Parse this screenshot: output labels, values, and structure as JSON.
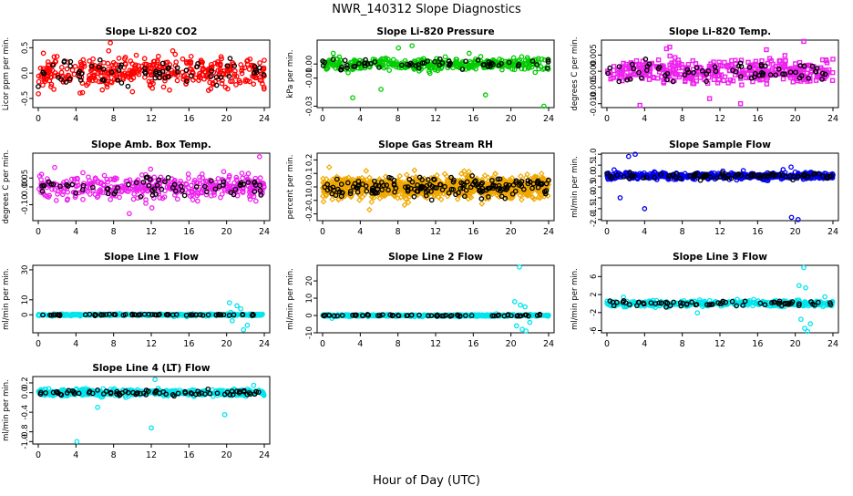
{
  "page": {
    "title": "NWR_140312  Slope Diagnostics",
    "xlabel": "Hour of Day (UTC)"
  },
  "chart_data": [
    {
      "type": "scatter",
      "title": "Slope Li-820 CO2",
      "ylabel": "Licor ppm per min.",
      "color": "#ff0000",
      "marker": "circle",
      "xlim": [
        0,
        24
      ],
      "xticks": [
        0,
        4,
        8,
        12,
        16,
        20,
        24
      ],
      "ylim": [
        -0.68,
        0.65
      ],
      "yticks": [
        -0.5,
        0,
        0.5
      ],
      "ytick_labels": [
        "-0.5",
        "0.0",
        "0.5"
      ],
      "spread": 0.28,
      "hi": 0.6,
      "lo": -0.62,
      "seed": 11,
      "n": 420,
      "spikes": []
    },
    {
      "type": "scatter",
      "title": "Slope Li-820 Pressure",
      "ylabel": "kPa per min.",
      "color": "#00cc00",
      "marker": "circle",
      "xlim": [
        0,
        24
      ],
      "xticks": [
        0,
        4,
        8,
        12,
        16,
        20,
        24
      ],
      "ylim": [
        -0.031,
        0.017
      ],
      "yticks": [
        -0.03,
        -0.01,
        0
      ],
      "ytick_labels": [
        "-0.03",
        "-0.01",
        "0.00"
      ],
      "spread": 0.004,
      "hi": 0.014,
      "lo": -0.03,
      "seed": 23,
      "n": 380,
      "spikes": [
        [
          9.5,
          0.013
        ],
        [
          6.2,
          -0.018
        ],
        [
          17.3,
          -0.022
        ],
        [
          23.5,
          -0.03
        ],
        [
          3.2,
          -0.024
        ]
      ]
    },
    {
      "type": "scatter",
      "title": "Slope Li-820 Temp.",
      "ylabel": "degrees C per min.",
      "color": "#ee22ee",
      "marker": "square",
      "xlim": [
        0,
        24
      ],
      "xticks": [
        0,
        4,
        8,
        12,
        16,
        20,
        24
      ],
      "ylim": [
        -0.0112,
        0.0096
      ],
      "yticks": [
        -0.01,
        -0.005,
        0,
        0.005
      ],
      "ytick_labels": [
        "-0.010",
        "-0.005",
        "0.000",
        "0.005"
      ],
      "spread": 0.0032,
      "hi": 0.0095,
      "lo": -0.011,
      "seed": 37,
      "n": 420,
      "spikes": [
        [
          20.9,
          0.0092
        ],
        [
          3.5,
          -0.0105
        ]
      ]
    },
    {
      "type": "scatter",
      "title": "Slope Amb. Box Temp.",
      "ylabel": "degrees C per min.",
      "color": "#ee22ee",
      "marker": "circle",
      "xlim": [
        0,
        24
      ],
      "xticks": [
        0,
        4,
        8,
        12,
        16,
        20,
        24
      ],
      "ylim": [
        -0.19,
        0.19
      ],
      "yticks": [
        -0.1,
        0,
        0.05
      ],
      "ytick_labels": [
        "-0.10",
        "0.00",
        "0.05"
      ],
      "spread": 0.06,
      "hi": 0.17,
      "lo": -0.15,
      "seed": 41,
      "n": 420,
      "spikes": [
        [
          23.5,
          0.17
        ]
      ]
    },
    {
      "type": "scatter",
      "title": "Slope Gas Stream RH",
      "ylabel": "percent per min.",
      "color": "#f0a800",
      "marker": "diamond",
      "xlim": [
        0,
        24
      ],
      "xticks": [
        0,
        4,
        8,
        12,
        16,
        20,
        24
      ],
      "ylim": [
        -0.25,
        0.25
      ],
      "yticks": [
        -0.2,
        -0.1,
        0,
        0.1,
        0.2
      ],
      "ytick_labels": [
        "-0.2",
        "-0.1",
        "0.0",
        "0.1",
        "0.2"
      ],
      "spread": 0.07,
      "hi": 0.22,
      "lo": -0.22,
      "seed": 53,
      "n": 1100,
      "spikes": []
    },
    {
      "type": "scatter",
      "title": "Slope Sample Flow",
      "ylabel": "ml/min per min.",
      "color": "#0000ee",
      "marker": "circle",
      "xlim": [
        0,
        24
      ],
      "xticks": [
        0,
        4,
        8,
        12,
        16,
        20,
        24
      ],
      "ylim": [
        -2.05,
        1.05
      ],
      "yticks": [
        -2,
        -1.5,
        -1,
        -0.5,
        0,
        0.5,
        1
      ],
      "ytick_labels": [
        "-2.0",
        "-1.5",
        "-1.0",
        "-0.5",
        "0.0",
        "0.5",
        "1.0"
      ],
      "spread": 0.14,
      "hi": 0.9,
      "lo": -1.9,
      "seed": 61,
      "n": 520,
      "spikes": [
        [
          2.3,
          0.9
        ],
        [
          3.0,
          1.0
        ],
        [
          1.4,
          -1.0
        ],
        [
          4.0,
          -1.5
        ],
        [
          19.6,
          -1.9
        ],
        [
          20.3,
          -2.0
        ]
      ]
    },
    {
      "type": "scatter",
      "title": "Slope Line 1 Flow",
      "ylabel": "ml/min per min.",
      "color": "#00e5ee",
      "marker": "circle",
      "xlim": [
        0,
        24
      ],
      "xticks": [
        0,
        4,
        8,
        12,
        16,
        20,
        24
      ],
      "ylim": [
        -12,
        33
      ],
      "yticks": [
        0,
        10,
        30
      ],
      "ytick_labels": [
        "0",
        "10",
        "30"
      ],
      "spread": 0.5,
      "hi": 33,
      "lo": -12,
      "seed": 71,
      "n": 420,
      "spikes": [
        [
          20.9,
          33
        ],
        [
          20.3,
          8
        ],
        [
          21.1,
          6
        ],
        [
          21.5,
          4
        ],
        [
          20.6,
          -4
        ],
        [
          22.2,
          -7
        ],
        [
          21.8,
          -10
        ]
      ]
    },
    {
      "type": "scatter",
      "title": "Slope Line 2 Flow",
      "ylabel": "ml/min per min.",
      "color": "#00e5ee",
      "marker": "circle",
      "xlim": [
        0,
        24
      ],
      "xticks": [
        0,
        4,
        8,
        12,
        16,
        20,
        24
      ],
      "ylim": [
        -10,
        29
      ],
      "yticks": [
        -10,
        0,
        10,
        20
      ],
      "ytick_labels": [
        "-10",
        "0",
        "10",
        "20"
      ],
      "spread": 0.5,
      "hi": 29,
      "lo": -10,
      "seed": 83,
      "n": 420,
      "spikes": [
        [
          20.9,
          28
        ],
        [
          20.4,
          8
        ],
        [
          21.0,
          6
        ],
        [
          21.5,
          5
        ],
        [
          20.6,
          -6
        ],
        [
          21.2,
          -8
        ],
        [
          21.6,
          -9
        ],
        [
          22.0,
          -4
        ]
      ]
    },
    {
      "type": "scatter",
      "title": "Slope Line 3 Flow",
      "ylabel": "ml/min per min.",
      "color": "#00e5ee",
      "marker": "circle",
      "xlim": [
        0,
        24
      ],
      "xticks": [
        0,
        4,
        8,
        12,
        16,
        20,
        24
      ],
      "ylim": [
        -6.5,
        8.5
      ],
      "yticks": [
        -6,
        -2,
        2,
        6
      ],
      "ytick_labels": [
        "-6",
        "-2",
        "2",
        "6"
      ],
      "spread": 0.6,
      "hi": 8.2,
      "lo": -6.4,
      "seed": 97,
      "n": 420,
      "spikes": [
        [
          20.9,
          8
        ],
        [
          20.4,
          4
        ],
        [
          21.1,
          3.5
        ],
        [
          20.6,
          -3.5
        ],
        [
          21.0,
          -5.5
        ],
        [
          21.3,
          -6.2
        ],
        [
          21.6,
          -4.5
        ]
      ]
    },
    {
      "type": "scatter",
      "title": "Slope Line 4 (LT) Flow",
      "ylabel": "ml/min per min.",
      "color": "#00e5ee",
      "marker": "circle",
      "xlim": [
        0,
        24
      ],
      "xticks": [
        0,
        4,
        8,
        12,
        16,
        20,
        24
      ],
      "ylim": [
        -1.05,
        0.33
      ],
      "yticks": [
        -1,
        -0.8,
        -0.4,
        0,
        0.2
      ],
      "ytick_labels": [
        "-1.0",
        "-0.8",
        "-0.4",
        "0.0",
        "0.2"
      ],
      "spread": 0.06,
      "hi": 0.3,
      "lo": -1.02,
      "seed": 103,
      "n": 480,
      "spikes": [
        [
          4.1,
          -1.0
        ],
        [
          12.0,
          -0.72
        ],
        [
          19.8,
          -0.45
        ],
        [
          6.3,
          -0.3
        ],
        [
          12.4,
          0.27
        ]
      ]
    }
  ]
}
